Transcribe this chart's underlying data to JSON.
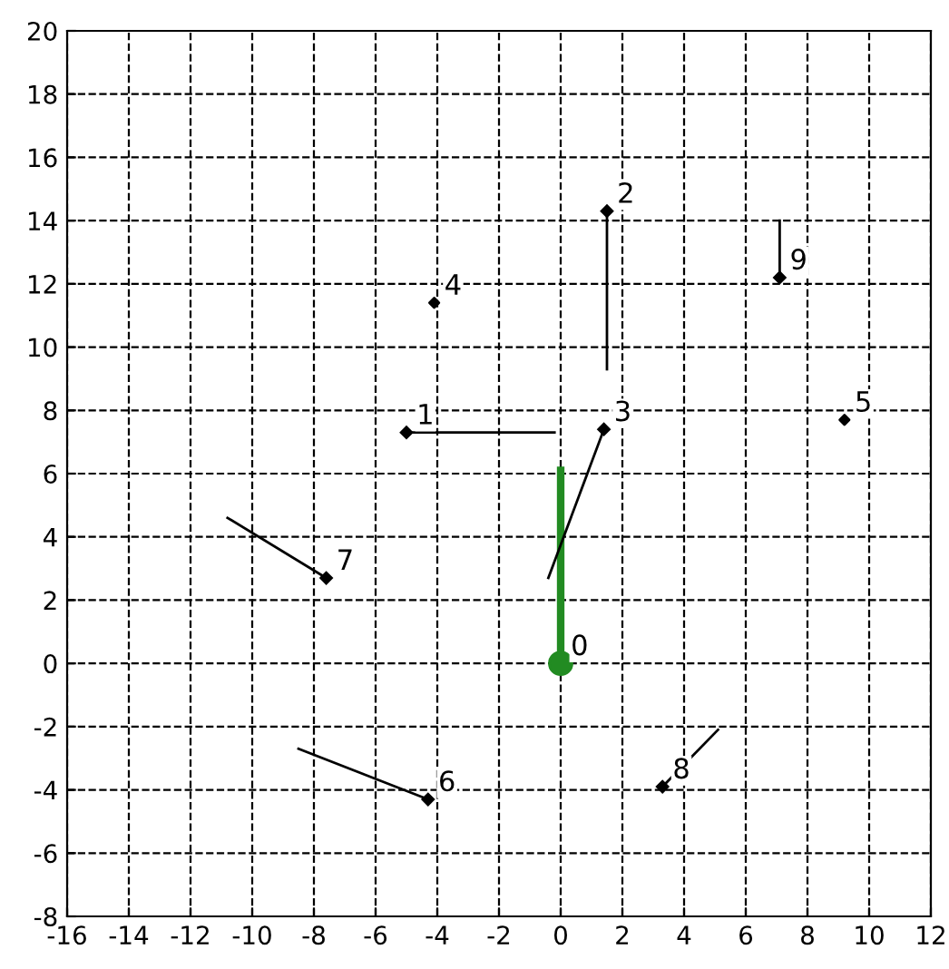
{
  "chart_data": {
    "type": "scatter",
    "xlim": [
      -16,
      12
    ],
    "ylim": [
      -8,
      20
    ],
    "xticks": [
      -16,
      -14,
      -12,
      -10,
      -8,
      -6,
      -4,
      -2,
      0,
      2,
      4,
      6,
      8,
      10,
      12
    ],
    "yticks": [
      -8,
      -6,
      -4,
      -2,
      0,
      2,
      4,
      6,
      8,
      10,
      12,
      14,
      16,
      18,
      20
    ],
    "grid": true,
    "line_style": "dashed",
    "series": [
      {
        "type": "line",
        "color": "#228b22",
        "marker": "circle",
        "x": [
          0,
          0
        ],
        "values": [
          0,
          6.1
        ],
        "line_style": "solid"
      },
      {
        "type": "line",
        "color": "#000000",
        "marker": "diamond",
        "x": [
          -5.0,
          -0.2
        ],
        "values": [
          7.3,
          7.3
        ],
        "line_style": "solid"
      },
      {
        "type": "line",
        "color": "#000000",
        "marker": "diamond",
        "x": [
          1.5,
          1.5
        ],
        "values": [
          14.3,
          9.3
        ],
        "line_style": "solid"
      },
      {
        "type": "line",
        "color": "#000000",
        "marker": "diamond",
        "x": [
          1.4,
          -0.4
        ],
        "values": [
          7.4,
          2.7
        ],
        "line_style": "solid"
      },
      {
        "type": "line",
        "color": "#000000",
        "marker": "diamond",
        "x": [
          -4.3,
          -8.5
        ],
        "values": [
          -4.3,
          -2.7
        ],
        "line_style": "solid"
      },
      {
        "type": "line",
        "color": "#000000",
        "marker": "diamond",
        "x": [
          -7.6,
          -10.8
        ],
        "values": [
          2.7,
          4.6
        ],
        "line_style": "solid"
      },
      {
        "type": "line",
        "color": "#000000",
        "marker": "diamond",
        "x": [
          3.3,
          5.1
        ],
        "values": [
          -3.9,
          -2.1
        ],
        "line_style": "solid"
      },
      {
        "type": "line",
        "color": "#000000",
        "marker": "diamond",
        "x": [
          7.1,
          7.1
        ],
        "values": [
          12.2,
          14.0
        ],
        "line_style": "solid"
      },
      {
        "color": "#000000",
        "marker": "diamond",
        "x": [
          -4.1,
          9.2
        ],
        "values": [
          11.4,
          7.7
        ]
      }
    ],
    "annotations": [
      {
        "text": "0",
        "x": 0,
        "y": 0
      },
      {
        "text": "1",
        "x": -5.0,
        "y": 7.3
      },
      {
        "text": "2",
        "x": 1.5,
        "y": 14.3
      },
      {
        "text": "3",
        "x": 1.4,
        "y": 7.4
      },
      {
        "text": "4",
        "x": -4.1,
        "y": 11.4
      },
      {
        "text": "5",
        "x": 9.2,
        "y": 7.7
      },
      {
        "text": "6",
        "x": -4.3,
        "y": -4.3
      },
      {
        "text": "7",
        "x": -7.6,
        "y": 2.7
      },
      {
        "text": "8",
        "x": 3.3,
        "y": -3.9
      },
      {
        "text": "9",
        "x": 7.1,
        "y": 12.2
      }
    ]
  }
}
